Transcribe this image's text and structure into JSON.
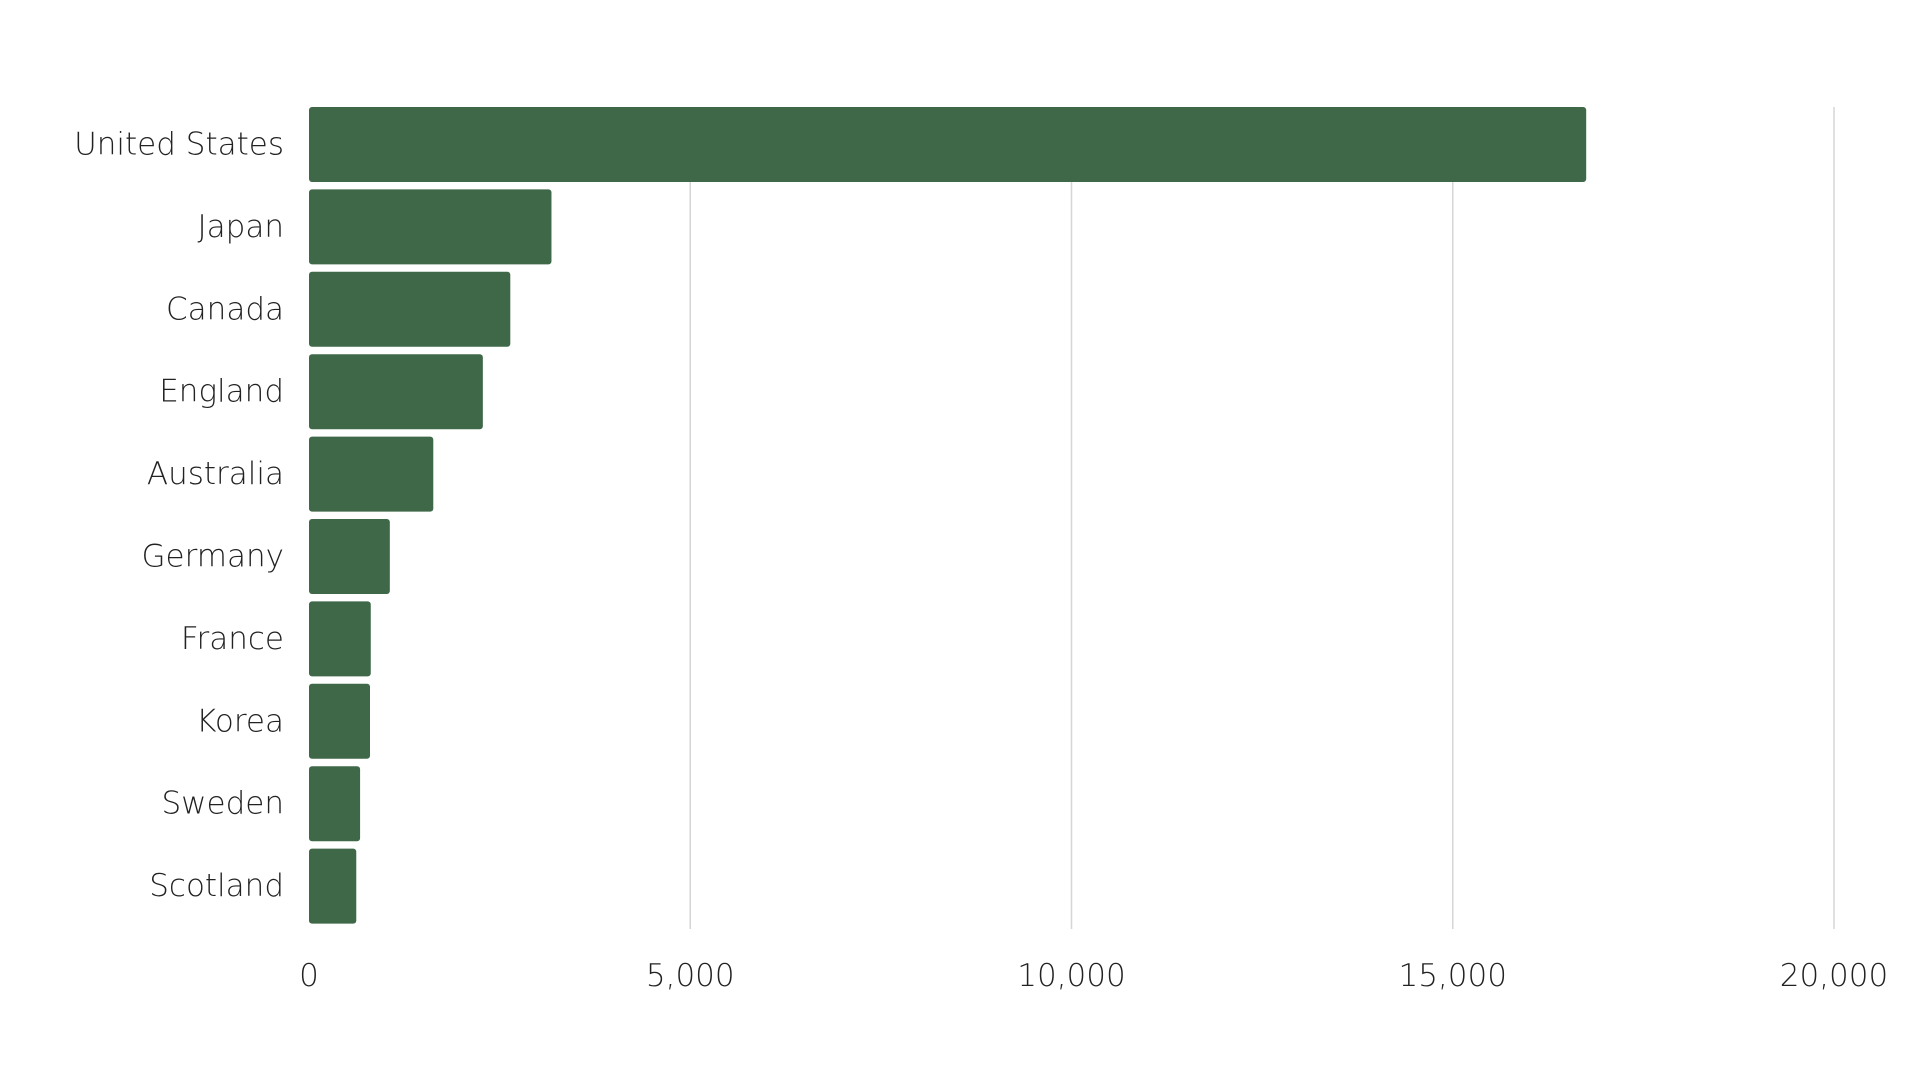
{
  "chart_data": {
    "type": "bar",
    "orientation": "horizontal",
    "title": "",
    "xlabel": "",
    "ylabel": "",
    "categories": [
      "United States",
      "Japan",
      "Canada",
      "England",
      "Australia",
      "Germany",
      "France",
      "Korea",
      "Sweden",
      "Scotland"
    ],
    "values": [
      16750,
      3180,
      2640,
      2280,
      1630,
      1060,
      810,
      800,
      670,
      620
    ],
    "xlim": [
      0,
      20000
    ],
    "xticks": [
      0,
      5000,
      10000,
      15000,
      20000
    ],
    "xtick_labels": [
      "0",
      "5,000",
      "10,000",
      "15,000",
      "20,000"
    ],
    "grid": "vertical",
    "legend": "none",
    "bar_color": "#3f6849",
    "grid_color": "#d6d6d6"
  }
}
